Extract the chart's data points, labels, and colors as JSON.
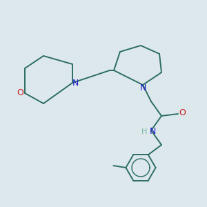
{
  "bg_color": "#dce8ec",
  "bond_color": "#2d6e60",
  "N_color": "#1a1acc",
  "O_color": "#cc1a1a",
  "H_color": "#7ab8a8",
  "bond_width": 1.4,
  "fig_size": [
    3.0,
    3.0
  ],
  "dpi": 100,
  "xlim": [
    0,
    10
  ],
  "ylim": [
    0,
    10
  ]
}
